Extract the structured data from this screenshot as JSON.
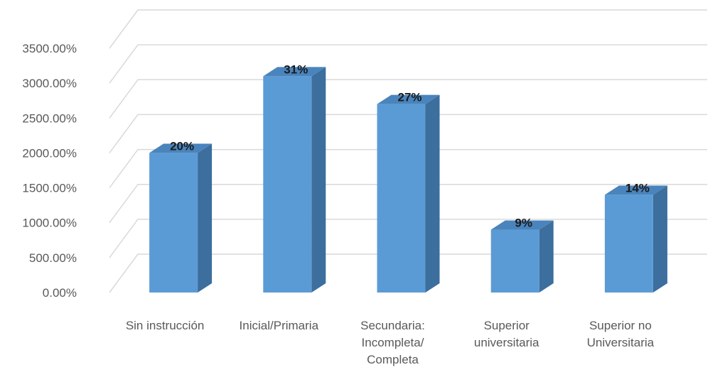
{
  "chart_data": {
    "type": "bar",
    "style": "3d-column",
    "title": "",
    "xlabel": "",
    "ylabel": "",
    "ylim": [
      0,
      3500
    ],
    "yticks": [
      0,
      500,
      1000,
      1500,
      2000,
      2500,
      3000,
      3500
    ],
    "ytick_labels": [
      "0.00%",
      "500.00%",
      "1000.00%",
      "1500.00%",
      "2000.00%",
      "2500.00%",
      "3000.00%",
      "3500.00%"
    ],
    "categories": [
      [
        "Sin instrucción"
      ],
      [
        "Inicial/Primaria"
      ],
      [
        "Secundaria:",
        "Incompleta/",
        "Completa"
      ],
      [
        "Superior",
        "universitaria"
      ],
      [
        "Superior no",
        "Universitaria"
      ]
    ],
    "values": [
      2000,
      3100,
      2700,
      900,
      1400
    ],
    "data_labels": [
      "20%",
      "31%",
      "27%",
      "9%",
      "14%"
    ],
    "grid": true,
    "legend": "none",
    "colors": {
      "bar_front": "#5b9bd5",
      "bar_side": "#3c6e9e",
      "bar_top": "#4a84bd",
      "grid": "#d9d9d9"
    }
  }
}
